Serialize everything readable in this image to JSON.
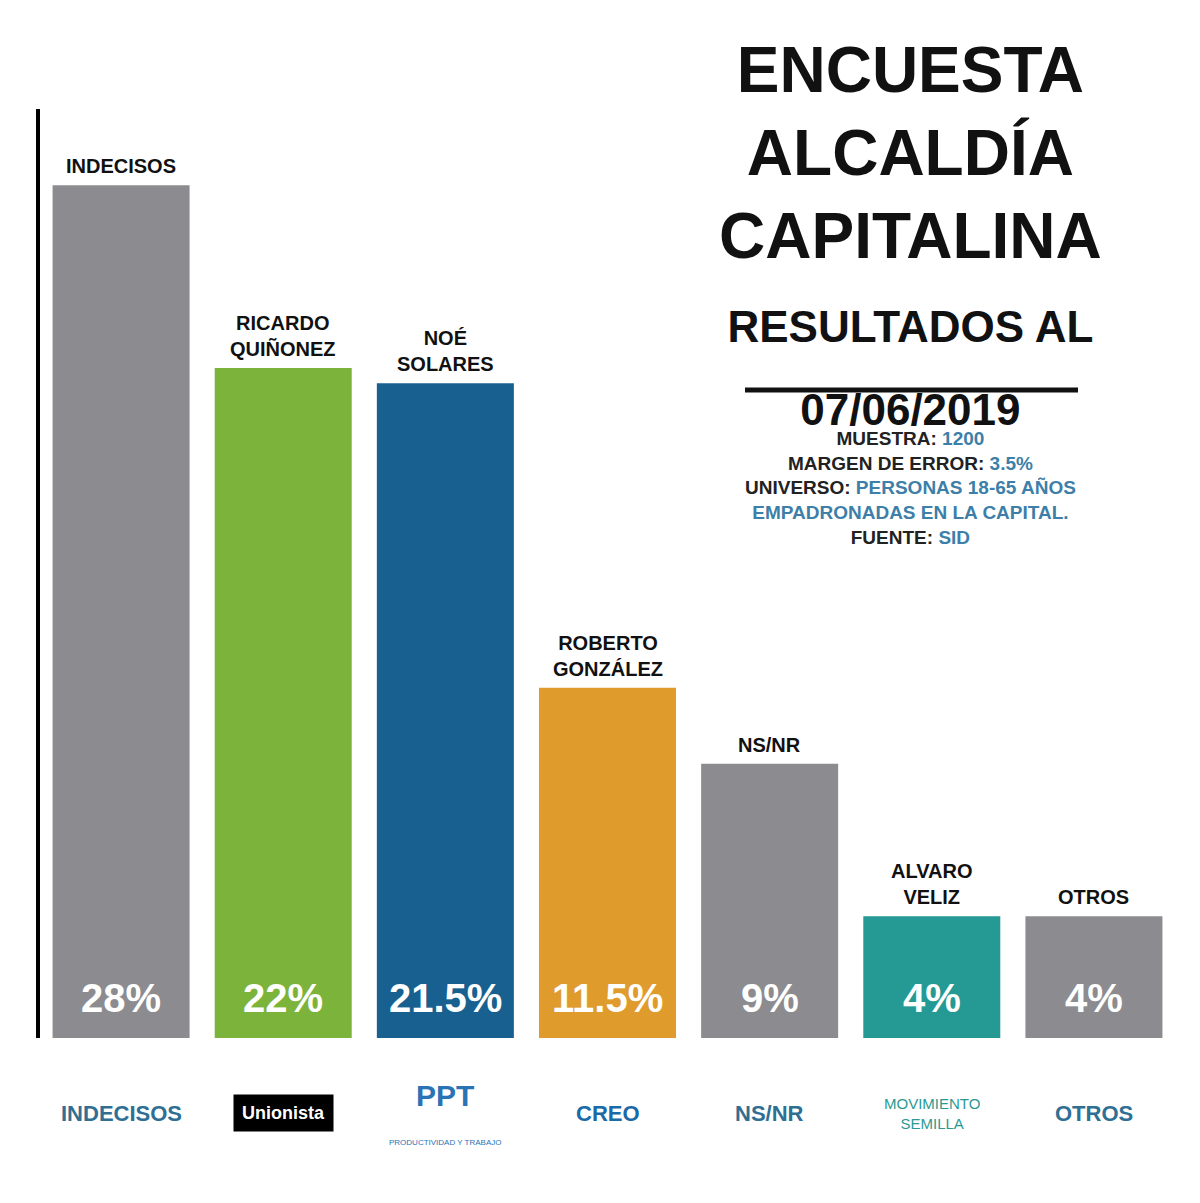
{
  "chart_data": {
    "type": "bar",
    "title": "ENCUESTA ALCALDÍA CAPITALINA",
    "subtitle": "RESULTADOS AL 07/06/2019",
    "categories": [
      "INDECISOS",
      "RICARDO QUIÑONEZ",
      "NOÉ SOLARES",
      "ROBERTO GONZÁLEZ",
      "NS/NR",
      "ALVARO VELIZ",
      "OTROS"
    ],
    "values": [
      28,
      22,
      21.5,
      11.5,
      9,
      4,
      4
    ],
    "value_labels": [
      "28%",
      "22%",
      "21.5%",
      "11.5%",
      "9%",
      "4%",
      "4%"
    ],
    "colors": [
      "#8c8c90",
      "#7cb33b",
      "#17608f",
      "#e09b2d",
      "#8c8c90",
      "#259a94",
      "#8c8c90"
    ],
    "ylim": [
      0,
      30.5
    ],
    "tick_labels": false,
    "grid": false,
    "data_labels": true,
    "parties": [
      {
        "label": "INDECISOS"
      },
      {
        "label": "Unionista"
      },
      {
        "label": "PPT",
        "note": "PRODUCTIVIDAD Y TRABAJO"
      },
      {
        "label": "CREO"
      },
      {
        "label": "NS/NR"
      },
      {
        "label": "MOVIMIENTO SEMILLA"
      },
      {
        "label": "OTROS"
      }
    ],
    "notes": [
      {
        "label": "MUESTRA:",
        "value": "1200"
      },
      {
        "label": "MARGEN DE ERROR:",
        "value": "3.5%"
      },
      {
        "label": "UNIVERSO:",
        "value": "PERSONAS 18-65 AÑOS EMPADRONADAS EN LA CAPITAL."
      },
      {
        "label": "FUENTE:",
        "value": "SID"
      }
    ]
  }
}
